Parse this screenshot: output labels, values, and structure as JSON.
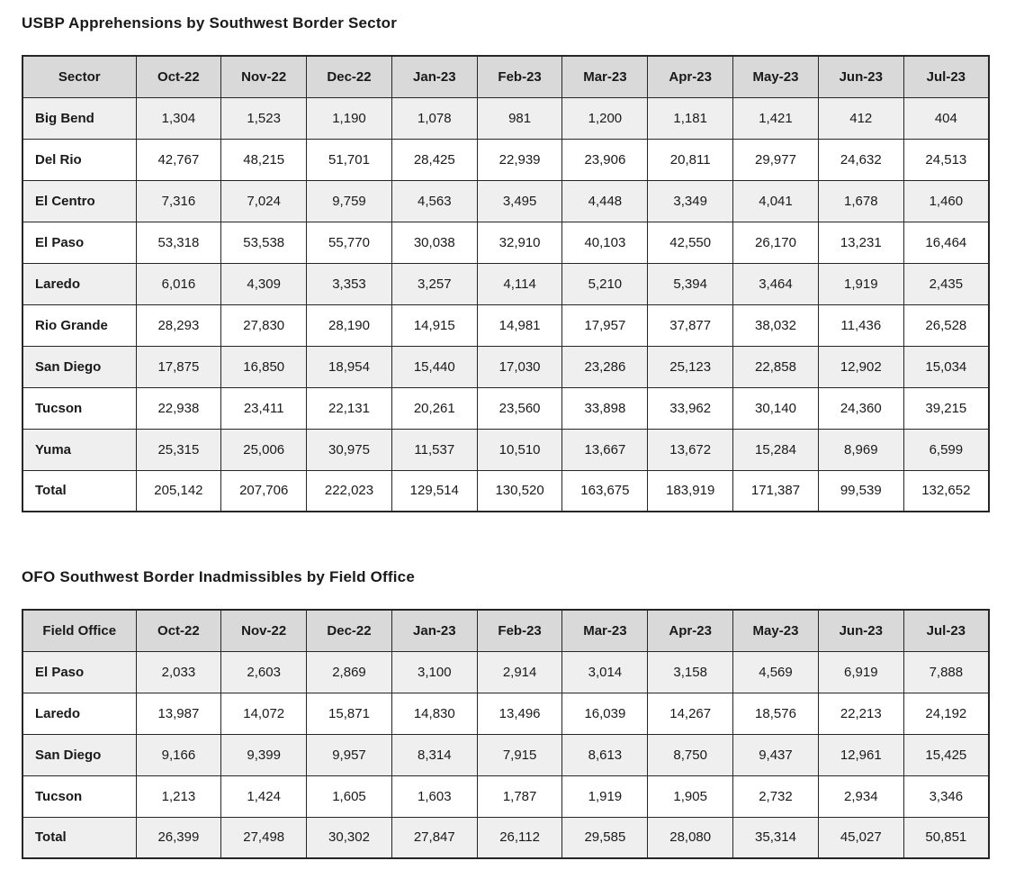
{
  "colors": {
    "header_bg": "#d9d9d9",
    "stripe_bg": "#efefef",
    "border": "#262626",
    "text": "#1a1a1a",
    "page_bg": "#ffffff"
  },
  "tables": [
    {
      "title": "USBP Apprehensions by Southwest Border Sector",
      "columns": [
        "Sector",
        "Oct-22",
        "Nov-22",
        "Dec-22",
        "Jan-23",
        "Feb-23",
        "Mar-23",
        "Apr-23",
        "May-23",
        "Jun-23",
        "Jul-23"
      ],
      "rows": [
        {
          "label": "Big Bend",
          "values": [
            "1,304",
            "1,523",
            "1,190",
            "1,078",
            "981",
            "1,200",
            "1,181",
            "1,421",
            "412",
            "404"
          ]
        },
        {
          "label": "Del Rio",
          "values": [
            "42,767",
            "48,215",
            "51,701",
            "28,425",
            "22,939",
            "23,906",
            "20,811",
            "29,977",
            "24,632",
            "24,513"
          ]
        },
        {
          "label": "El Centro",
          "values": [
            "7,316",
            "7,024",
            "9,759",
            "4,563",
            "3,495",
            "4,448",
            "3,349",
            "4,041",
            "1,678",
            "1,460"
          ]
        },
        {
          "label": "El Paso",
          "values": [
            "53,318",
            "53,538",
            "55,770",
            "30,038",
            "32,910",
            "40,103",
            "42,550",
            "26,170",
            "13,231",
            "16,464"
          ]
        },
        {
          "label": "Laredo",
          "values": [
            "6,016",
            "4,309",
            "3,353",
            "3,257",
            "4,114",
            "5,210",
            "5,394",
            "3,464",
            "1,919",
            "2,435"
          ]
        },
        {
          "label": "Rio Grande",
          "values": [
            "28,293",
            "27,830",
            "28,190",
            "14,915",
            "14,981",
            "17,957",
            "37,877",
            "38,032",
            "11,436",
            "26,528"
          ]
        },
        {
          "label": "San Diego",
          "values": [
            "17,875",
            "16,850",
            "18,954",
            "15,440",
            "17,030",
            "23,286",
            "25,123",
            "22,858",
            "12,902",
            "15,034"
          ]
        },
        {
          "label": "Tucson",
          "values": [
            "22,938",
            "23,411",
            "22,131",
            "20,261",
            "23,560",
            "33,898",
            "33,962",
            "30,140",
            "24,360",
            "39,215"
          ]
        },
        {
          "label": "Yuma",
          "values": [
            "25,315",
            "25,006",
            "30,975",
            "11,537",
            "10,510",
            "13,667",
            "13,672",
            "15,284",
            "8,969",
            "6,599"
          ]
        },
        {
          "label": "Total",
          "values": [
            "205,142",
            "207,706",
            "222,023",
            "129,514",
            "130,520",
            "163,675",
            "183,919",
            "171,387",
            "99,539",
            "132,652"
          ]
        }
      ]
    },
    {
      "title": "OFO Southwest Border Inadmissibles by Field Office",
      "columns": [
        "Field Office",
        "Oct-22",
        "Nov-22",
        "Dec-22",
        "Jan-23",
        "Feb-23",
        "Mar-23",
        "Apr-23",
        "May-23",
        "Jun-23",
        "Jul-23"
      ],
      "rows": [
        {
          "label": "El Paso",
          "values": [
            "2,033",
            "2,603",
            "2,869",
            "3,100",
            "2,914",
            "3,014",
            "3,158",
            "4,569",
            "6,919",
            "7,888"
          ]
        },
        {
          "label": "Laredo",
          "values": [
            "13,987",
            "14,072",
            "15,871",
            "14,830",
            "13,496",
            "16,039",
            "14,267",
            "18,576",
            "22,213",
            "24,192"
          ]
        },
        {
          "label": "San Diego",
          "values": [
            "9,166",
            "9,399",
            "9,957",
            "8,314",
            "7,915",
            "8,613",
            "8,750",
            "9,437",
            "12,961",
            "15,425"
          ]
        },
        {
          "label": "Tucson",
          "values": [
            "1,213",
            "1,424",
            "1,605",
            "1,603",
            "1,787",
            "1,919",
            "1,905",
            "2,732",
            "2,934",
            "3,346"
          ]
        },
        {
          "label": "Total",
          "values": [
            "26,399",
            "27,498",
            "30,302",
            "27,847",
            "26,112",
            "29,585",
            "28,080",
            "35,314",
            "45,027",
            "50,851"
          ]
        }
      ]
    }
  ]
}
